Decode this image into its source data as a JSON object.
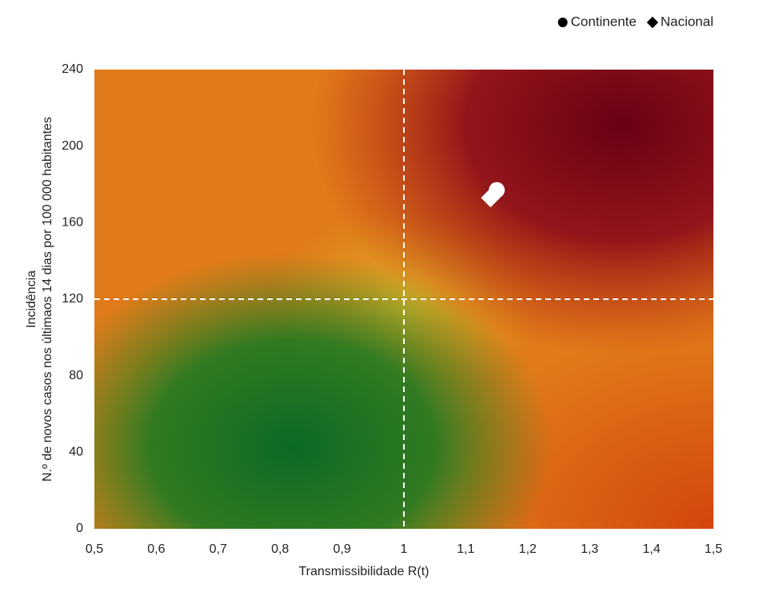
{
  "chart_data": {
    "type": "scatter",
    "xlabel": "Transmissibilidade R(t)",
    "ylabel": [
      "Incidência",
      "N.º de novos casos nos últimaos 14 dias por 100 000 habitantes"
    ],
    "xlim": [
      0.5,
      1.5
    ],
    "ylim": [
      0,
      240
    ],
    "xticks": [
      {
        "value": 0.5,
        "label": "0,5"
      },
      {
        "value": 0.6,
        "label": "0,6"
      },
      {
        "value": 0.7,
        "label": "0,7"
      },
      {
        "value": 0.8,
        "label": "0,8"
      },
      {
        "value": 0.9,
        "label": "0,9"
      },
      1,
      {
        "value": 1.1,
        "label": "1,1"
      },
      {
        "value": 1.2,
        "label": "1,2"
      },
      {
        "value": 1.3,
        "label": "1,3"
      },
      {
        "value": 1.4,
        "label": "1,4"
      },
      {
        "value": 1.5,
        "label": "1,5"
      }
    ],
    "yticks": [
      0,
      40,
      80,
      120,
      160,
      200,
      240
    ],
    "reference_lines": {
      "x": [
        1
      ],
      "y": [
        120
      ]
    },
    "legend": "top-right",
    "legend_marker_color": "#000000",
    "series": [
      {
        "name": "Continente",
        "marker": "circle",
        "color": "#ffffff",
        "x": [
          1.15
        ],
        "values": [
          177
        ]
      },
      {
        "name": "Nacional",
        "marker": "diamond",
        "color": "#ffffff",
        "x": [
          1.14
        ],
        "values": [
          173
        ]
      }
    ]
  }
}
